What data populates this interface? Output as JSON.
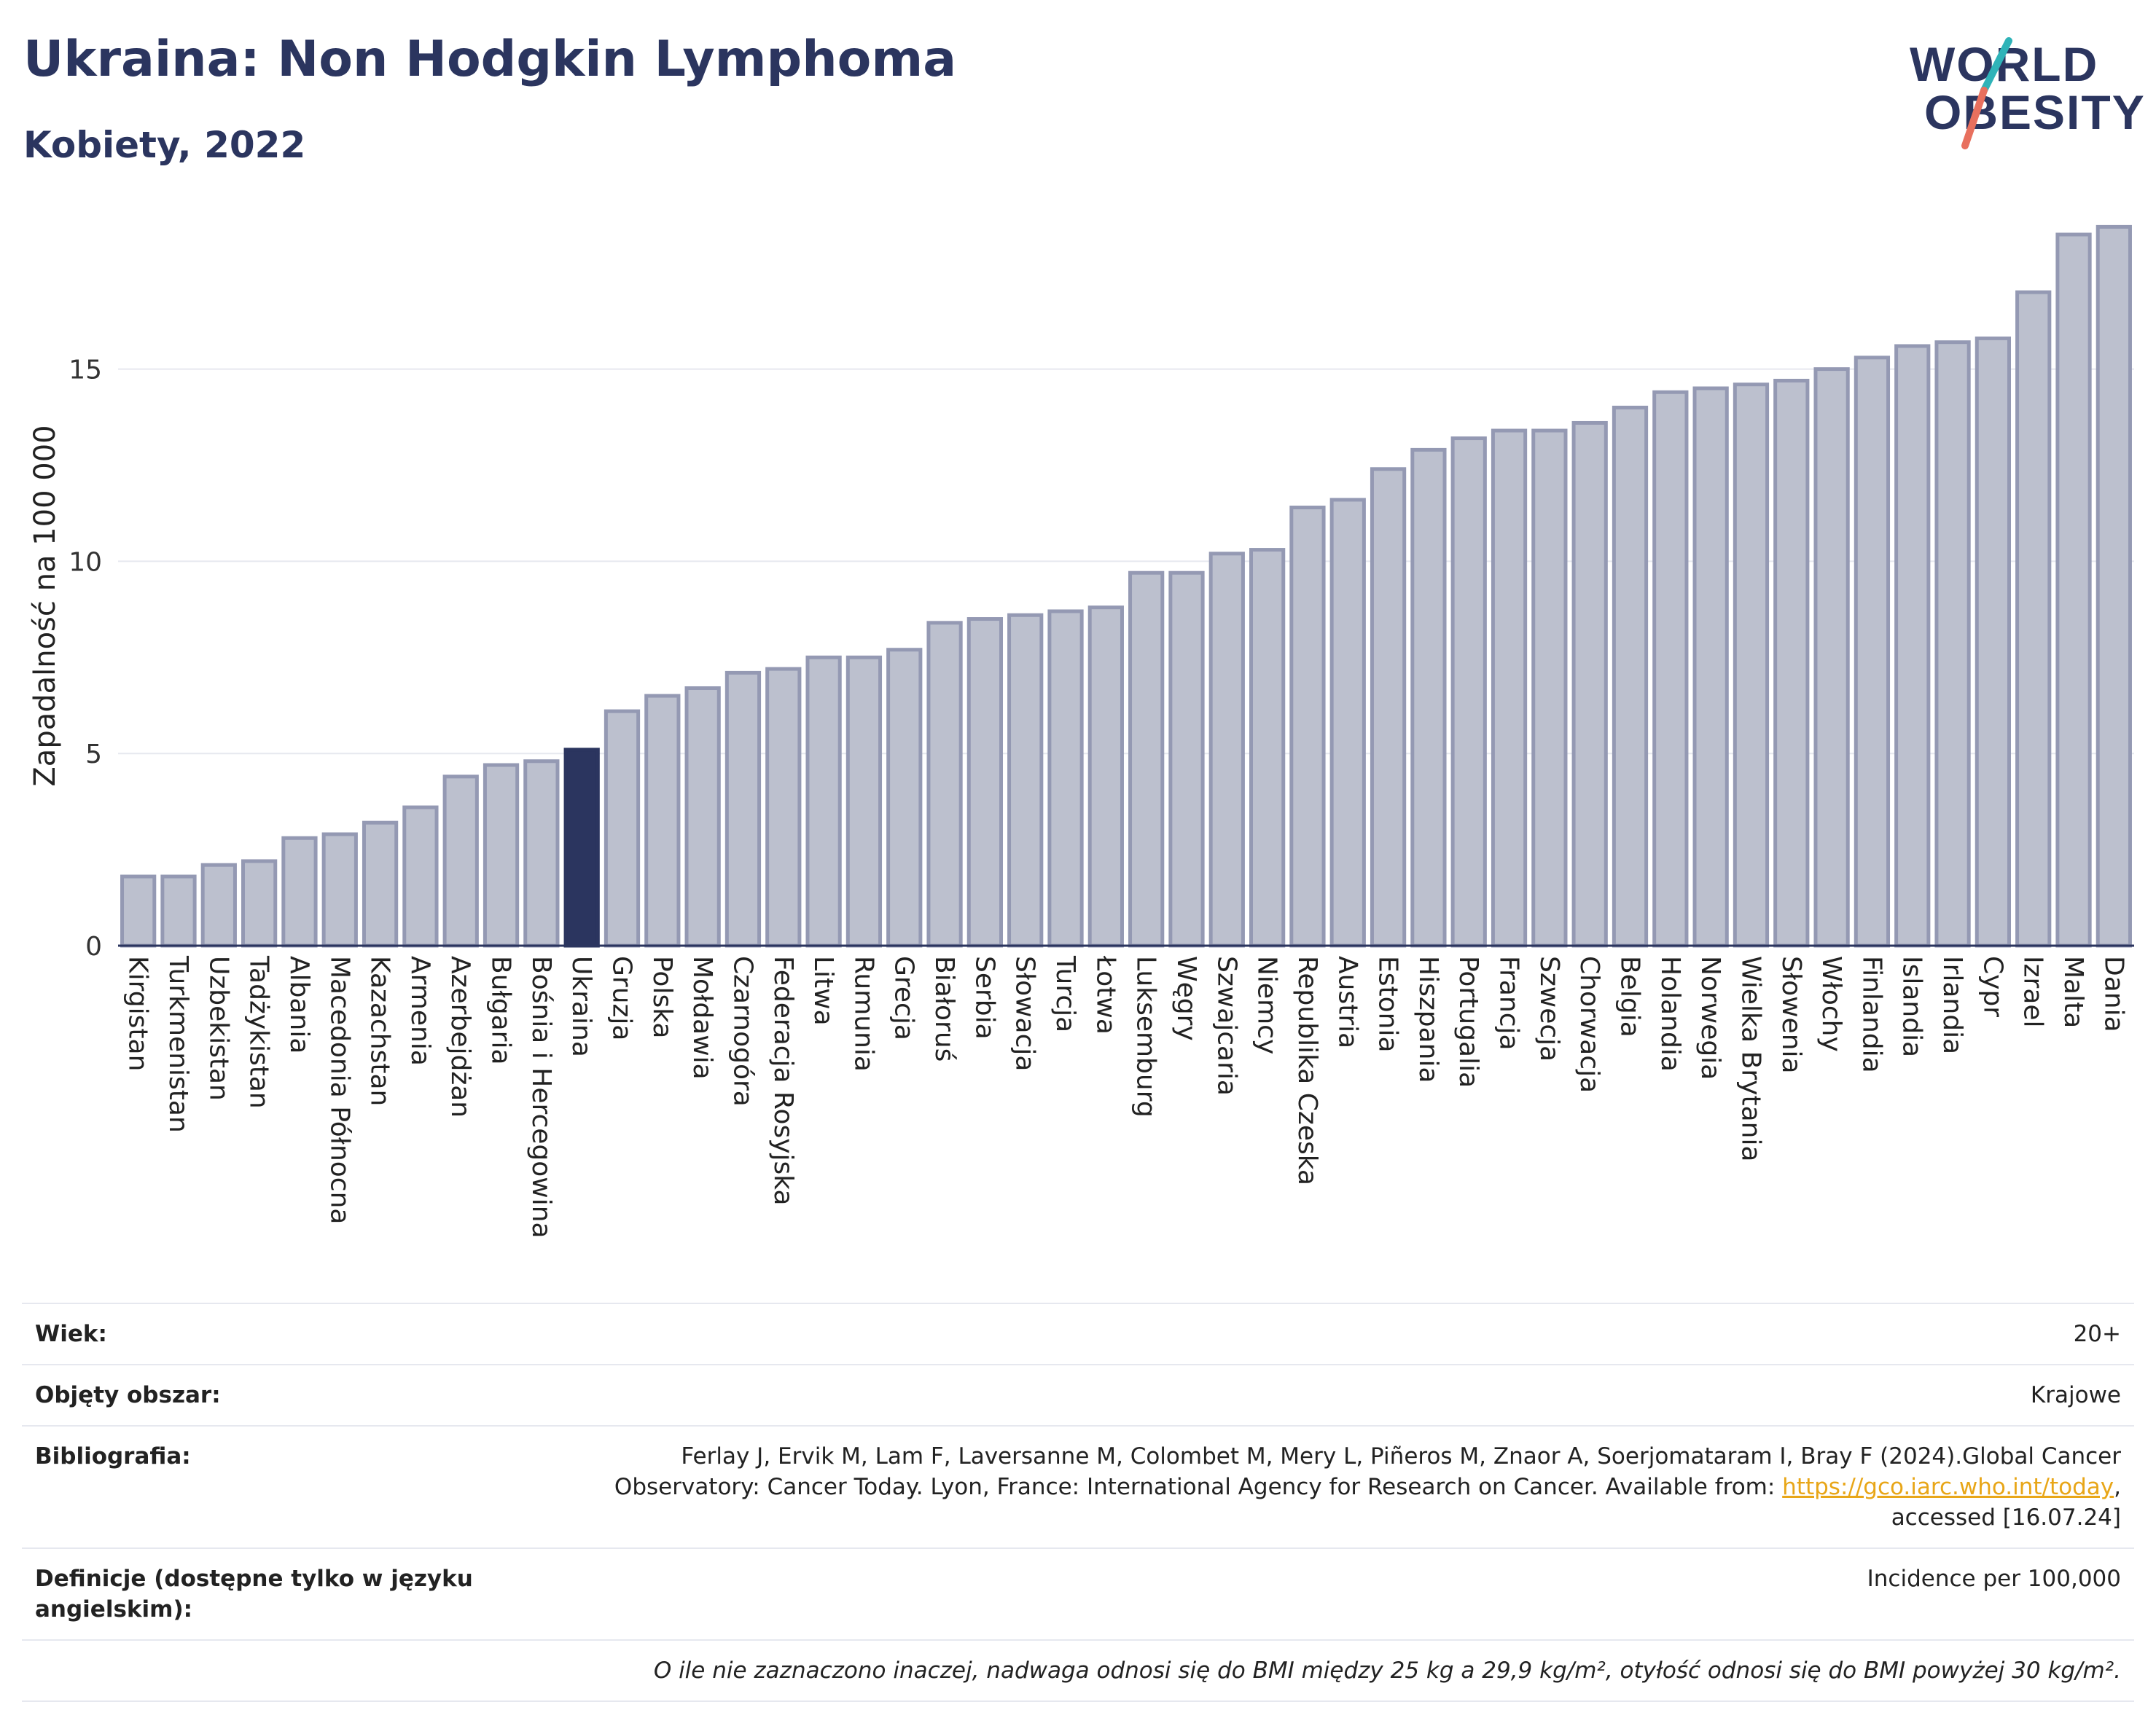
{
  "title": "Ukraina: Non Hodgkin Lymphoma",
  "subtitle": "Kobiety, 2022",
  "logo": {
    "line1": "WORLD",
    "line2": "OBESITY"
  },
  "colors": {
    "bar": "#bcc0ce",
    "bar_stroke": "#9499b3",
    "highlight": "#2b355f",
    "axis": "#2b355f",
    "grid": "#e6e8ef"
  },
  "chart_data": {
    "type": "bar",
    "ylabel": "Zapadalność na 100 000",
    "xlabel": "",
    "ylim": [
      0,
      19.2
    ],
    "yticks": [
      0,
      5,
      10,
      15
    ],
    "highlight": "Ukraina",
    "grid": true,
    "categories": [
      "Kirgistan",
      "Turkmenistan",
      "Uzbekistan",
      "Tadżykistan",
      "Albania",
      "Macedonia Północna",
      "Kazachstan",
      "Armenia",
      "Azerbejdżan",
      "Bułgaria",
      "Bośnia i Hercegowina",
      "Ukraina",
      "Gruzja",
      "Polska",
      "Mołdawia",
      "Czarnogóra",
      "Federacja Rosyjska",
      "Litwa",
      "Rumunia",
      "Grecja",
      "Białoruś",
      "Serbia",
      "Słowacja",
      "Turcja",
      "Łotwa",
      "Luksemburg",
      "Węgry",
      "Szwajcaria",
      "Niemcy",
      "Republika Czeska",
      "Austria",
      "Estonia",
      "Hiszpania",
      "Portugalia",
      "Francja",
      "Szwecja",
      "Chorwacja",
      "Belgia",
      "Holandia",
      "Norwegia",
      "Wielka Brytania",
      "Słowenia",
      "Włochy",
      "Finlandia",
      "Islandia",
      "Irlandia",
      "Cypr",
      "Izrael",
      "Malta",
      "Dania"
    ],
    "values": [
      1.8,
      1.8,
      2.1,
      2.2,
      2.8,
      2.9,
      3.2,
      3.6,
      4.4,
      4.7,
      4.8,
      5.1,
      6.1,
      6.5,
      6.7,
      7.1,
      7.2,
      7.5,
      7.5,
      7.7,
      8.4,
      8.5,
      8.6,
      8.7,
      8.8,
      9.7,
      9.7,
      10.2,
      10.3,
      11.4,
      11.6,
      12.4,
      12.9,
      13.2,
      13.4,
      13.4,
      13.6,
      14.0,
      14.4,
      14.5,
      14.6,
      14.7,
      15.0,
      15.3,
      15.6,
      15.7,
      15.8,
      17.0,
      18.5,
      18.7
    ]
  },
  "info": {
    "age_label": "Wiek:",
    "age_value": "20+",
    "area_label": "Objęty obszar:",
    "area_value": "Krajowe",
    "biblio_label": "Bibliografia:",
    "biblio_text1": "Ferlay J, Ervik M, Lam F, Laversanne M, Colombet M, Mery L, Piñeros M, Znaor A, Soerjomataram I, Bray F (2024).Global Cancer",
    "biblio_text2": "Observatory: Cancer Today. Lyon, France: International Agency for Research on Cancer. Available from: ",
    "biblio_link": "https://gco.iarc.who.int/today",
    "biblio_text3": "accessed [16.07.24]",
    "def_label": "Definicje (dostępne tylko w języku angielskim):",
    "def_value": "Incidence per 100,000",
    "note": "O ile nie zaznaczono inaczej, nadwaga odnosi się do BMI między 25 kg a 29,9 kg/m², otyłość odnosi się do BMI powyżej 30 kg/m²."
  }
}
